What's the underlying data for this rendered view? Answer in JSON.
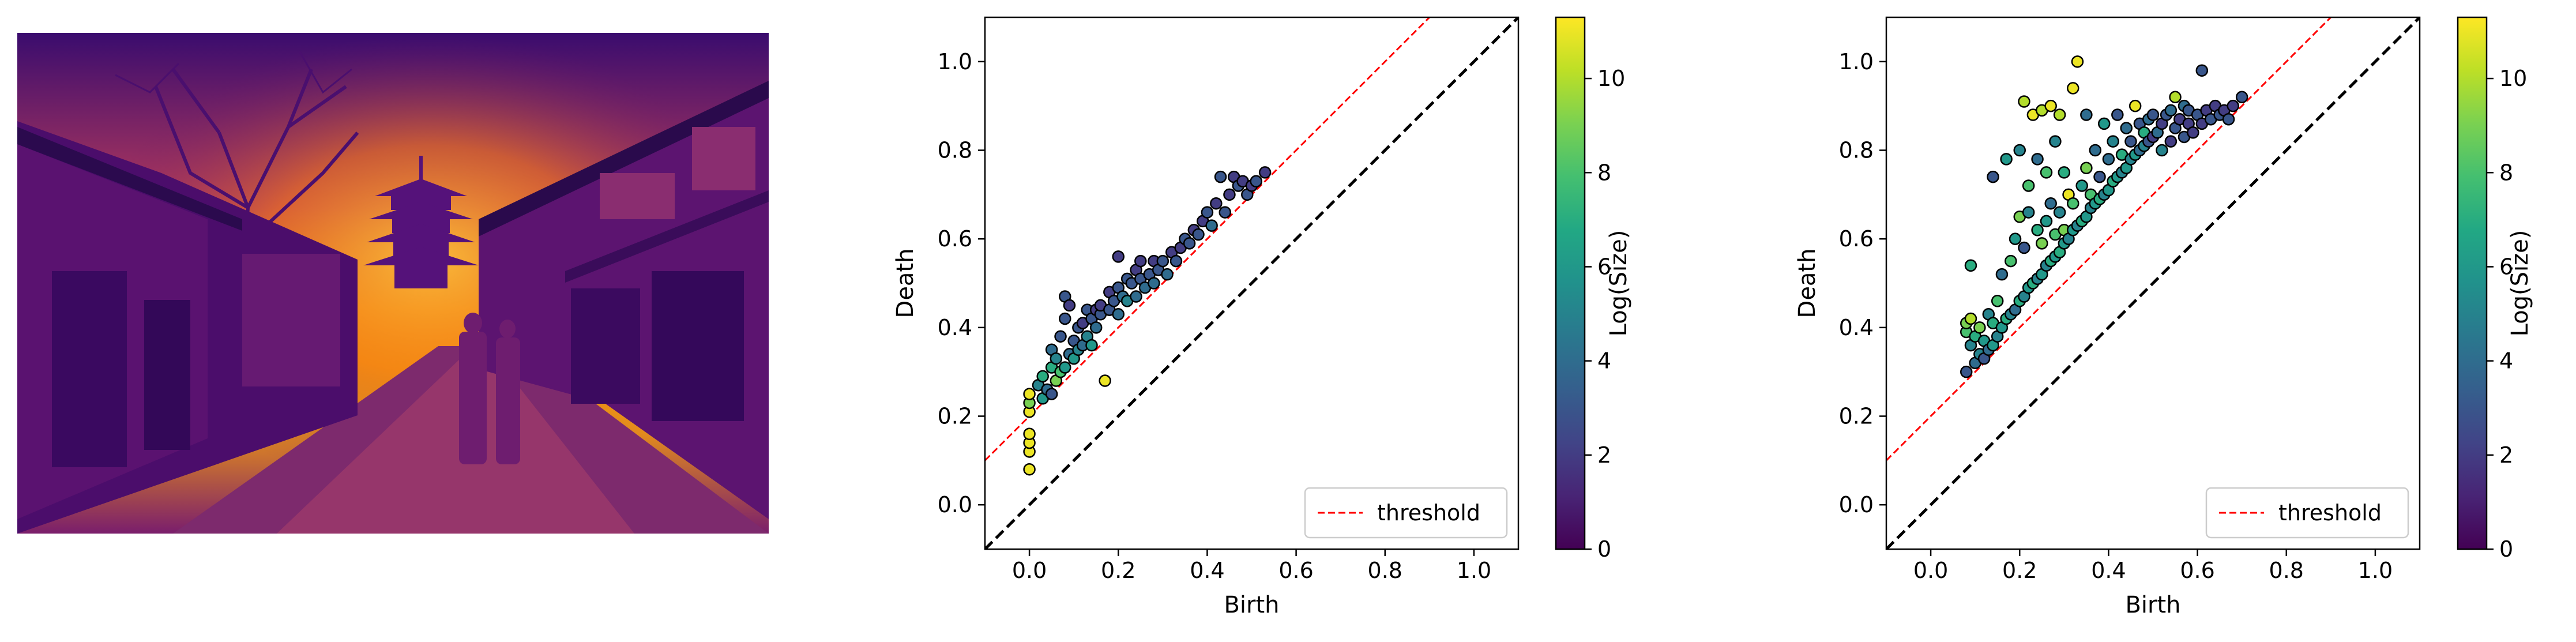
{
  "image_panel": {
    "kind": "photo",
    "colormap": "inferno",
    "scene": "street-with-pagoda"
  },
  "chart_data": [
    {
      "type": "scatter",
      "title": "",
      "xlabel": "Birth",
      "ylabel": "Death",
      "xlim": [
        -0.1,
        1.1
      ],
      "ylim": [
        -0.1,
        1.1
      ],
      "xticks": [
        "0.0",
        "0.2",
        "0.4",
        "0.6",
        "0.8",
        "1.0"
      ],
      "yticks": [
        "0.0",
        "0.2",
        "0.4",
        "0.6",
        "0.8",
        "1.0"
      ],
      "grid": false,
      "legend": {
        "position": "bottom-right",
        "label": "threshold"
      },
      "reference_lines": [
        {
          "kind": "diagonal",
          "style": "dashed",
          "color": "#000000",
          "offset": 0.0
        },
        {
          "kind": "threshold",
          "style": "dashed",
          "color": "#ff0000",
          "offset": 0.2
        }
      ],
      "colorbar": {
        "label": "Log(Size)",
        "range": [
          0,
          11.3
        ],
        "ticks": [
          "0",
          "2",
          "4",
          "6",
          "8",
          "10"
        ]
      },
      "points": [
        [
          0.0,
          0.08,
          11
        ],
        [
          0.0,
          0.12,
          11
        ],
        [
          0.0,
          0.14,
          11
        ],
        [
          0.0,
          0.16,
          11
        ],
        [
          0.0,
          0.21,
          11
        ],
        [
          0.0,
          0.23,
          9
        ],
        [
          0.0,
          0.25,
          11
        ],
        [
          0.02,
          0.27,
          5
        ],
        [
          0.03,
          0.24,
          6
        ],
        [
          0.03,
          0.29,
          7
        ],
        [
          0.04,
          0.26,
          4
        ],
        [
          0.05,
          0.25,
          3
        ],
        [
          0.05,
          0.31,
          7
        ],
        [
          0.05,
          0.35,
          4
        ],
        [
          0.06,
          0.28,
          9
        ],
        [
          0.06,
          0.33,
          5
        ],
        [
          0.07,
          0.3,
          8
        ],
        [
          0.07,
          0.38,
          3
        ],
        [
          0.08,
          0.31,
          6
        ],
        [
          0.08,
          0.42,
          3
        ],
        [
          0.08,
          0.47,
          3
        ],
        [
          0.09,
          0.34,
          4
        ],
        [
          0.09,
          0.45,
          2
        ],
        [
          0.1,
          0.33,
          6
        ],
        [
          0.1,
          0.37,
          3
        ],
        [
          0.11,
          0.35,
          5
        ],
        [
          0.11,
          0.4,
          3
        ],
        [
          0.12,
          0.36,
          4
        ],
        [
          0.12,
          0.41,
          2
        ],
        [
          0.13,
          0.38,
          5
        ],
        [
          0.13,
          0.44,
          3
        ],
        [
          0.14,
          0.36,
          6
        ],
        [
          0.14,
          0.42,
          3
        ],
        [
          0.15,
          0.4,
          4
        ],
        [
          0.15,
          0.44,
          2
        ],
        [
          0.16,
          0.43,
          3
        ],
        [
          0.16,
          0.45,
          2
        ],
        [
          0.17,
          0.28,
          11
        ],
        [
          0.18,
          0.44,
          3
        ],
        [
          0.18,
          0.48,
          2
        ],
        [
          0.19,
          0.46,
          3
        ],
        [
          0.2,
          0.43,
          4
        ],
        [
          0.2,
          0.49,
          3
        ],
        [
          0.2,
          0.56,
          2
        ],
        [
          0.21,
          0.47,
          4
        ],
        [
          0.22,
          0.51,
          3
        ],
        [
          0.22,
          0.46,
          5
        ],
        [
          0.23,
          0.5,
          3
        ],
        [
          0.24,
          0.47,
          4
        ],
        [
          0.24,
          0.53,
          2
        ],
        [
          0.25,
          0.51,
          3
        ],
        [
          0.25,
          0.55,
          2
        ],
        [
          0.26,
          0.49,
          4
        ],
        [
          0.27,
          0.52,
          3
        ],
        [
          0.28,
          0.5,
          4
        ],
        [
          0.28,
          0.55,
          2
        ],
        [
          0.29,
          0.53,
          3
        ],
        [
          0.3,
          0.55,
          3
        ],
        [
          0.31,
          0.52,
          4
        ],
        [
          0.32,
          0.57,
          2
        ],
        [
          0.33,
          0.55,
          3
        ],
        [
          0.34,
          0.58,
          2
        ],
        [
          0.35,
          0.6,
          3
        ],
        [
          0.36,
          0.59,
          3
        ],
        [
          0.37,
          0.62,
          2
        ],
        [
          0.38,
          0.61,
          3
        ],
        [
          0.39,
          0.64,
          2
        ],
        [
          0.4,
          0.66,
          3
        ],
        [
          0.41,
          0.63,
          4
        ],
        [
          0.42,
          0.68,
          2
        ],
        [
          0.43,
          0.74,
          3
        ],
        [
          0.44,
          0.66,
          3
        ],
        [
          0.45,
          0.7,
          2
        ],
        [
          0.46,
          0.74,
          2
        ],
        [
          0.47,
          0.72,
          3
        ],
        [
          0.48,
          0.73,
          2
        ],
        [
          0.49,
          0.7,
          3
        ],
        [
          0.5,
          0.72,
          2
        ],
        [
          0.51,
          0.73,
          3
        ],
        [
          0.53,
          0.75,
          2
        ]
      ]
    },
    {
      "type": "scatter",
      "title": "",
      "xlabel": "Birth",
      "ylabel": "Death",
      "xlim": [
        -0.1,
        1.1
      ],
      "ylim": [
        -0.1,
        1.1
      ],
      "xticks": [
        "0.0",
        "0.2",
        "0.4",
        "0.6",
        "0.8",
        "1.0"
      ],
      "yticks": [
        "0.0",
        "0.2",
        "0.4",
        "0.6",
        "0.8",
        "1.0"
      ],
      "grid": false,
      "legend": {
        "position": "bottom-right",
        "label": "threshold"
      },
      "reference_lines": [
        {
          "kind": "diagonal",
          "style": "dashed",
          "color": "#000000",
          "offset": 0.0
        },
        {
          "kind": "threshold",
          "style": "dashed",
          "color": "#ff0000",
          "offset": 0.2
        }
      ],
      "colorbar": {
        "label": "Log(Size)",
        "range": [
          0,
          11.3
        ],
        "ticks": [
          "0",
          "2",
          "4",
          "6",
          "8",
          "10"
        ]
      },
      "points": [
        [
          0.08,
          0.3,
          3
        ],
        [
          0.08,
          0.39,
          8
        ],
        [
          0.08,
          0.41,
          9
        ],
        [
          0.09,
          0.36,
          5
        ],
        [
          0.09,
          0.42,
          10
        ],
        [
          0.09,
          0.54,
          7
        ],
        [
          0.1,
          0.32,
          4
        ],
        [
          0.1,
          0.38,
          7
        ],
        [
          0.11,
          0.34,
          5
        ],
        [
          0.11,
          0.4,
          9
        ],
        [
          0.12,
          0.33,
          3
        ],
        [
          0.12,
          0.37,
          6
        ],
        [
          0.13,
          0.35,
          4
        ],
        [
          0.13,
          0.43,
          5
        ],
        [
          0.14,
          0.36,
          6
        ],
        [
          0.14,
          0.41,
          7
        ],
        [
          0.14,
          0.74,
          3
        ],
        [
          0.15,
          0.38,
          5
        ],
        [
          0.15,
          0.46,
          8
        ],
        [
          0.16,
          0.4,
          6
        ],
        [
          0.16,
          0.52,
          4
        ],
        [
          0.17,
          0.42,
          7
        ],
        [
          0.17,
          0.78,
          6
        ],
        [
          0.18,
          0.43,
          5
        ],
        [
          0.18,
          0.55,
          8
        ],
        [
          0.19,
          0.44,
          4
        ],
        [
          0.19,
          0.6,
          6
        ],
        [
          0.2,
          0.46,
          7
        ],
        [
          0.2,
          0.65,
          9
        ],
        [
          0.2,
          0.8,
          5
        ],
        [
          0.21,
          0.47,
          5
        ],
        [
          0.21,
          0.58,
          3
        ],
        [
          0.21,
          0.91,
          10
        ],
        [
          0.22,
          0.49,
          6
        ],
        [
          0.22,
          0.66,
          5
        ],
        [
          0.22,
          0.72,
          8
        ],
        [
          0.23,
          0.5,
          7
        ],
        [
          0.23,
          0.88,
          11
        ],
        [
          0.24,
          0.51,
          5
        ],
        [
          0.24,
          0.62,
          7
        ],
        [
          0.24,
          0.78,
          4
        ],
        [
          0.25,
          0.52,
          6
        ],
        [
          0.25,
          0.59,
          9
        ],
        [
          0.25,
          0.89,
          10
        ],
        [
          0.26,
          0.54,
          5
        ],
        [
          0.26,
          0.64,
          6
        ],
        [
          0.26,
          0.75,
          8
        ],
        [
          0.27,
          0.55,
          7
        ],
        [
          0.27,
          0.68,
          4
        ],
        [
          0.27,
          0.9,
          11
        ],
        [
          0.28,
          0.56,
          6
        ],
        [
          0.28,
          0.61,
          8
        ],
        [
          0.28,
          0.82,
          5
        ],
        [
          0.29,
          0.57,
          7
        ],
        [
          0.29,
          0.66,
          5
        ],
        [
          0.29,
          0.88,
          10
        ],
        [
          0.3,
          0.59,
          6
        ],
        [
          0.3,
          0.62,
          9
        ],
        [
          0.3,
          0.75,
          7
        ],
        [
          0.31,
          0.6,
          5
        ],
        [
          0.31,
          0.7,
          11
        ],
        [
          0.32,
          0.62,
          6
        ],
        [
          0.32,
          0.68,
          8
        ],
        [
          0.32,
          0.94,
          11
        ],
        [
          0.33,
          0.63,
          5
        ],
        [
          0.33,
          1.0,
          11
        ],
        [
          0.34,
          0.64,
          7
        ],
        [
          0.34,
          0.72,
          6
        ],
        [
          0.35,
          0.65,
          6
        ],
        [
          0.35,
          0.76,
          9
        ],
        [
          0.35,
          0.88,
          4
        ],
        [
          0.36,
          0.67,
          5
        ],
        [
          0.36,
          0.7,
          8
        ],
        [
          0.37,
          0.68,
          6
        ],
        [
          0.37,
          0.8,
          4
        ],
        [
          0.38,
          0.69,
          7
        ],
        [
          0.38,
          0.74,
          3
        ],
        [
          0.39,
          0.7,
          5
        ],
        [
          0.39,
          0.86,
          6
        ],
        [
          0.4,
          0.71,
          6
        ],
        [
          0.4,
          0.78,
          4
        ],
        [
          0.41,
          0.73,
          7
        ],
        [
          0.41,
          0.82,
          5
        ],
        [
          0.42,
          0.74,
          6
        ],
        [
          0.42,
          0.88,
          3
        ],
        [
          0.43,
          0.75,
          5
        ],
        [
          0.43,
          0.79,
          7
        ],
        [
          0.44,
          0.76,
          6
        ],
        [
          0.44,
          0.85,
          4
        ],
        [
          0.45,
          0.78,
          5
        ],
        [
          0.45,
          0.82,
          3
        ],
        [
          0.46,
          0.79,
          6
        ],
        [
          0.46,
          0.9,
          11
        ],
        [
          0.47,
          0.8,
          4
        ],
        [
          0.47,
          0.86,
          3
        ],
        [
          0.48,
          0.81,
          5
        ],
        [
          0.48,
          0.84,
          7
        ],
        [
          0.49,
          0.82,
          3
        ],
        [
          0.49,
          0.87,
          4
        ],
        [
          0.5,
          0.83,
          2
        ],
        [
          0.5,
          0.88,
          3
        ],
        [
          0.51,
          0.84,
          4
        ],
        [
          0.52,
          0.86,
          2
        ],
        [
          0.52,
          0.8,
          5
        ],
        [
          0.53,
          0.88,
          3
        ],
        [
          0.54,
          0.82,
          2
        ],
        [
          0.54,
          0.89,
          4
        ],
        [
          0.55,
          0.85,
          3
        ],
        [
          0.55,
          0.92,
          10
        ],
        [
          0.56,
          0.87,
          2
        ],
        [
          0.57,
          0.83,
          3
        ],
        [
          0.57,
          0.9,
          4
        ],
        [
          0.58,
          0.86,
          2
        ],
        [
          0.58,
          0.89,
          3
        ],
        [
          0.59,
          0.84,
          2
        ],
        [
          0.6,
          0.88,
          3
        ],
        [
          0.61,
          0.86,
          2
        ],
        [
          0.61,
          0.98,
          3
        ],
        [
          0.62,
          0.89,
          2
        ],
        [
          0.63,
          0.87,
          3
        ],
        [
          0.64,
          0.9,
          2
        ],
        [
          0.65,
          0.88,
          3
        ],
        [
          0.66,
          0.89,
          2
        ],
        [
          0.67,
          0.87,
          3
        ],
        [
          0.68,
          0.9,
          2
        ],
        [
          0.7,
          0.92,
          3
        ]
      ]
    }
  ]
}
